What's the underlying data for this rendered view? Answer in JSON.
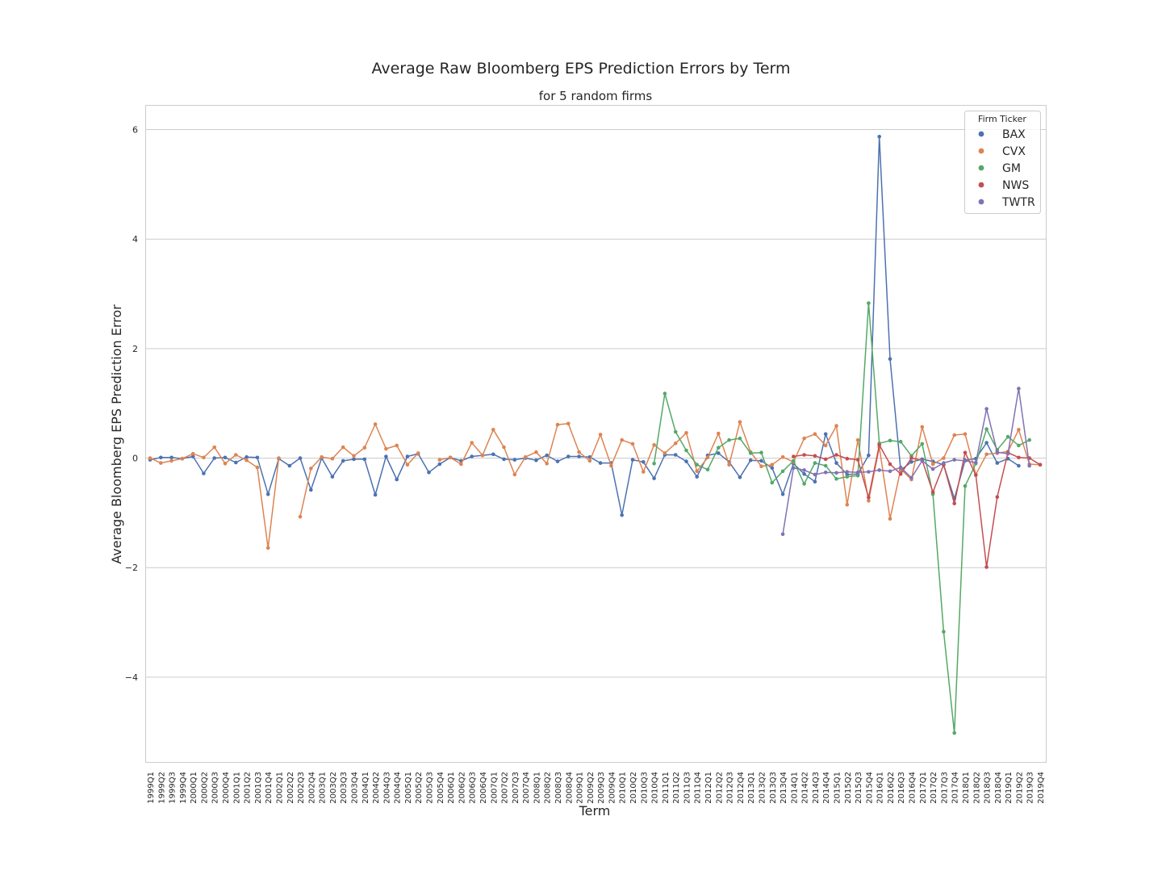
{
  "chart_data": {
    "type": "line",
    "title": "Average Raw Bloomberg EPS Prediction Errors by Term",
    "subtitle": "for 5 random firms",
    "xlabel": "Term",
    "ylabel": "Average Bloomberg EPS Prediction Error",
    "ylim": [
      -5.55,
      6.45
    ],
    "yticks": [
      -4,
      -2,
      0,
      2,
      4,
      6
    ],
    "grid": "horizontal",
    "legend": {
      "title": "Firm Ticker",
      "placement": "top-right"
    },
    "categories": [
      "1999Q1",
      "1999Q2",
      "1999Q3",
      "1999Q4",
      "2000Q1",
      "2000Q2",
      "2000Q3",
      "2000Q4",
      "2001Q1",
      "2001Q2",
      "2001Q3",
      "2001Q4",
      "2002Q1",
      "2002Q2",
      "2002Q3",
      "2002Q4",
      "2003Q1",
      "2003Q2",
      "2003Q3",
      "2003Q4",
      "2004Q1",
      "2004Q2",
      "2004Q3",
      "2004Q4",
      "2005Q1",
      "2005Q2",
      "2005Q3",
      "2005Q4",
      "2006Q1",
      "2006Q2",
      "2006Q3",
      "2006Q4",
      "2007Q1",
      "2007Q2",
      "2007Q3",
      "2007Q4",
      "2008Q1",
      "2008Q2",
      "2008Q3",
      "2008Q4",
      "2009Q1",
      "2009Q2",
      "2009Q3",
      "2009Q4",
      "2010Q1",
      "2010Q2",
      "2010Q3",
      "2010Q4",
      "2011Q1",
      "2011Q2",
      "2011Q3",
      "2011Q4",
      "2012Q1",
      "2012Q2",
      "2012Q3",
      "2012Q4",
      "2013Q1",
      "2013Q2",
      "2013Q3",
      "2013Q4",
      "2014Q1",
      "2014Q2",
      "2014Q3",
      "2014Q4",
      "2015Q1",
      "2015Q2",
      "2015Q3",
      "2015Q4",
      "2016Q1",
      "2016Q2",
      "2016Q3",
      "2016Q4",
      "2017Q1",
      "2017Q2",
      "2017Q3",
      "2017Q4",
      "2018Q1",
      "2018Q2",
      "2018Q3",
      "2018Q4",
      "2019Q1",
      "2019Q2",
      "2019Q3",
      "2019Q4"
    ],
    "series": [
      {
        "name": "BAX",
        "color": "#4c72b0",
        "values": [
          -0.03,
          0.01,
          0.01,
          -0.01,
          0.03,
          -0.28,
          0.0,
          0.01,
          -0.08,
          0.02,
          0.01,
          -0.66,
          -0.01,
          -0.14,
          0.0,
          -0.58,
          0.0,
          -0.34,
          -0.05,
          -0.02,
          -0.02,
          -0.67,
          0.03,
          -0.39,
          0.03,
          0.08,
          -0.26,
          -0.11,
          0.01,
          -0.05,
          0.03,
          0.05,
          0.07,
          -0.02,
          -0.03,
          0.0,
          -0.04,
          0.05,
          -0.06,
          0.03,
          0.03,
          0.02,
          -0.09,
          -0.09,
          -1.04,
          -0.03,
          -0.07,
          -0.37,
          0.06,
          0.06,
          -0.06,
          -0.34,
          0.05,
          0.09,
          -0.07,
          -0.35,
          -0.04,
          -0.05,
          -0.18,
          -0.66,
          -0.1,
          -0.29,
          -0.43,
          0.44,
          -0.09,
          -0.3,
          -0.29,
          0.05,
          5.87,
          1.81,
          -0.22,
          -0.07,
          -0.02,
          -0.06,
          -0.12,
          -0.74,
          -0.04,
          -0.01,
          0.28,
          -0.09,
          -0.01,
          -0.14,
          null,
          null
        ]
      },
      {
        "name": "CVX",
        "color": "#dd8452",
        "values": [
          0.0,
          -0.09,
          -0.05,
          -0.01,
          0.08,
          0.01,
          0.2,
          -0.1,
          0.06,
          -0.04,
          -0.17,
          -1.64,
          0.0,
          null,
          -1.07,
          -0.19,
          0.02,
          -0.01,
          0.2,
          0.04,
          0.19,
          0.62,
          0.17,
          0.23,
          -0.12,
          0.09,
          null,
          -0.03,
          0.01,
          -0.11,
          0.28,
          0.05,
          0.52,
          0.2,
          -0.3,
          0.02,
          0.11,
          -0.1,
          0.61,
          0.63,
          0.11,
          -0.05,
          0.43,
          -0.14,
          0.33,
          0.26,
          -0.25,
          0.24,
          0.09,
          0.27,
          0.46,
          -0.24,
          0.01,
          0.45,
          -0.12,
          0.66,
          0.11,
          -0.15,
          -0.12,
          0.02,
          -0.07,
          0.36,
          0.44,
          0.23,
          0.59,
          -0.85,
          0.33,
          -0.78,
          0.2,
          -1.11,
          -0.2,
          -0.39,
          0.57,
          -0.11,
          0.0,
          0.42,
          0.44,
          -0.3,
          0.07,
          0.09,
          0.12,
          0.52,
          -0.11,
          -0.12
        ]
      },
      {
        "name": "GM",
        "color": "#55a868",
        "values": [
          null,
          null,
          null,
          null,
          null,
          null,
          null,
          null,
          null,
          null,
          null,
          null,
          null,
          null,
          null,
          null,
          null,
          null,
          null,
          null,
          null,
          null,
          null,
          null,
          null,
          null,
          null,
          null,
          null,
          null,
          null,
          null,
          null,
          null,
          null,
          null,
          null,
          null,
          null,
          null,
          null,
          null,
          null,
          null,
          null,
          null,
          null,
          -0.1,
          1.18,
          0.48,
          0.14,
          -0.12,
          -0.21,
          0.19,
          0.33,
          0.36,
          0.09,
          0.1,
          -0.45,
          -0.24,
          -0.05,
          -0.47,
          -0.09,
          -0.14,
          -0.38,
          -0.34,
          -0.32,
          2.83,
          0.27,
          0.32,
          0.3,
          0.04,
          0.26,
          -0.66,
          -3.17,
          -5.02,
          -0.51,
          -0.1,
          0.53,
          0.15,
          0.39,
          0.23,
          0.33,
          null
        ]
      },
      {
        "name": "NWS",
        "color": "#c44e52",
        "values": [
          null,
          null,
          null,
          null,
          null,
          null,
          null,
          null,
          null,
          null,
          null,
          null,
          null,
          null,
          null,
          null,
          null,
          null,
          null,
          null,
          null,
          null,
          null,
          null,
          null,
          null,
          null,
          null,
          null,
          null,
          null,
          null,
          null,
          null,
          null,
          null,
          null,
          null,
          null,
          null,
          null,
          null,
          null,
          null,
          null,
          null,
          null,
          null,
          null,
          null,
          null,
          null,
          null,
          null,
          null,
          null,
          null,
          null,
          null,
          null,
          0.03,
          0.06,
          0.04,
          -0.02,
          0.06,
          -0.01,
          -0.03,
          -0.72,
          0.24,
          -0.11,
          -0.29,
          0.0,
          -0.04,
          -0.62,
          -0.12,
          -0.83,
          0.1,
          -0.31,
          -1.99,
          -0.71,
          0.1,
          0.01,
          0.0,
          -0.12
        ]
      },
      {
        "name": "TWTR",
        "color": "#8172b3",
        "values": [
          null,
          null,
          null,
          null,
          null,
          null,
          null,
          null,
          null,
          null,
          null,
          null,
          null,
          null,
          null,
          null,
          null,
          null,
          null,
          null,
          null,
          null,
          null,
          null,
          null,
          null,
          null,
          null,
          null,
          null,
          null,
          null,
          null,
          null,
          null,
          null,
          null,
          null,
          null,
          null,
          null,
          null,
          null,
          null,
          null,
          null,
          null,
          null,
          null,
          null,
          null,
          null,
          null,
          null,
          null,
          null,
          null,
          null,
          null,
          -1.39,
          -0.18,
          -0.22,
          -0.3,
          -0.26,
          -0.27,
          -0.25,
          -0.26,
          -0.25,
          -0.22,
          -0.24,
          -0.17,
          -0.36,
          -0.05,
          -0.2,
          -0.09,
          -0.03,
          -0.05,
          -0.08,
          0.9,
          0.11,
          0.08,
          1.27,
          -0.14,
          null
        ]
      }
    ]
  }
}
